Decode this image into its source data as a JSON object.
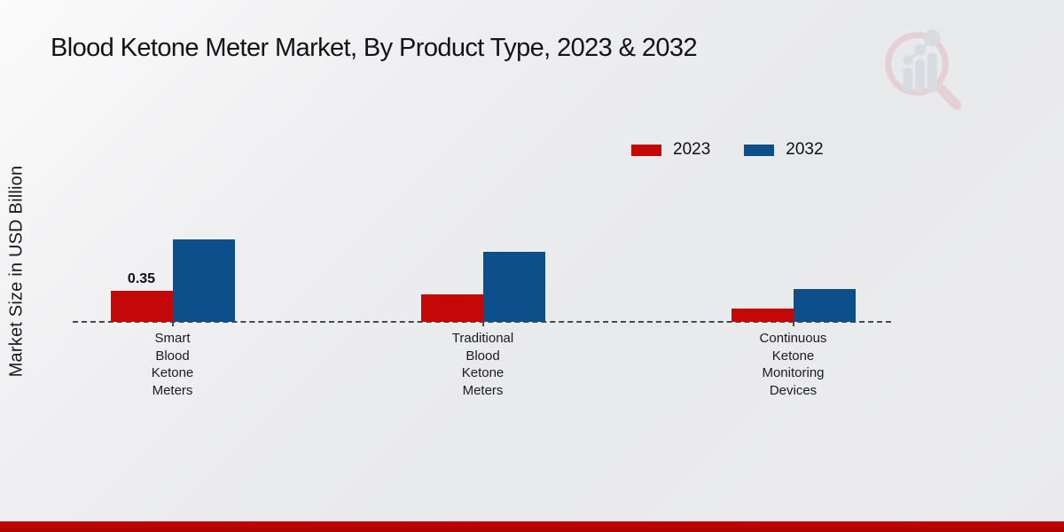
{
  "title": "Blood Ketone Meter Market, By Product Type, 2023 & 2032",
  "y_axis_label": "Market Size in USD Billion",
  "colors": {
    "series_2023": "#c40707",
    "series_2032": "#0d4f8b",
    "baseline": "#4a4a4a",
    "bottom_bar": "#c30505",
    "watermark_pink": "#e2bdc1",
    "watermark_gray": "#ccd0d6"
  },
  "legend": {
    "items": [
      {
        "label": "2023",
        "color": "#c40707"
      },
      {
        "label": "2032",
        "color": "#0d4f8b"
      }
    ]
  },
  "chart_data": {
    "type": "bar",
    "title": "Blood Ketone Meter Market, By Product Type, 2023 & 2032",
    "xlabel": "",
    "ylabel": "Market Size in USD Billion",
    "unit": "USD Billion",
    "categories": [
      "Smart\nBlood\nKetone\nMeters",
      "Traditional\nBlood\nKetone\nMeters",
      "Continuous\nKetone\nMonitoring\nDevices"
    ],
    "series": [
      {
        "name": "2023",
        "color": "#c40707",
        "values": [
          0.35,
          0.31,
          0.15
        ],
        "data_labels": [
          "0.35",
          "",
          ""
        ]
      },
      {
        "name": "2032",
        "color": "#0d4f8b",
        "values": [
          0.92,
          0.78,
          0.37
        ],
        "data_labels": [
          "",
          "",
          ""
        ]
      }
    ],
    "ylim": [
      0,
      1.0
    ],
    "grid": false,
    "legend_position": "top-right",
    "baseline_style": "dashed"
  }
}
